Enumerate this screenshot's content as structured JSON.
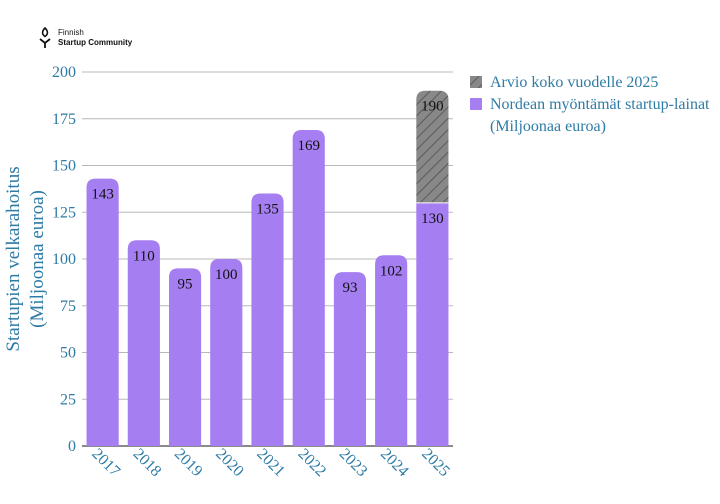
{
  "logo": {
    "line1": "Finnish",
    "line2": "Startup Community",
    "icon": "fsc-logo-icon"
  },
  "chart_data": {
    "type": "bar",
    "categories": [
      "2017",
      "2018",
      "2019",
      "2020",
      "2021",
      "2022",
      "2023",
      "2024",
      "2025"
    ],
    "series": [
      {
        "name": "Nordean myöntämät startup-lainat (Miljoonaa euroa)",
        "color": "#a57ef2",
        "values": [
          143,
          110,
          95,
          100,
          135,
          169,
          93,
          102,
          130
        ]
      },
      {
        "name": "Arvio koko vuodelle 2025",
        "color": "#888888",
        "pattern": "diagonal-hatch",
        "stacked_on": "Nordean myöntämät startup-lainat (Miljoonaa euroa)",
        "values": [
          null,
          null,
          null,
          null,
          null,
          null,
          null,
          null,
          60
        ]
      }
    ],
    "data_labels": [
      "143",
      "110",
      "95",
      "100",
      "135",
      "169",
      "93",
      "102",
      "130"
    ],
    "estimate_label": "190",
    "ylabel_lines": [
      "Startupien velkarahoitus",
      "(Miljoonaa euroa)"
    ],
    "xlabel": "",
    "ylim": [
      0,
      200
    ],
    "yticks": [
      0,
      25,
      50,
      75,
      100,
      125,
      150,
      175,
      200
    ],
    "grid": true,
    "legend_position": "top-right",
    "legend": [
      {
        "label_lines": [
          "Arvio koko vuodelle 2025"
        ],
        "color": "#888888"
      },
      {
        "label_lines": [
          "Nordean myöntämät startup-lainat",
          "(Miljoonaa euroa)"
        ],
        "color": "#a57ef2"
      }
    ]
  }
}
